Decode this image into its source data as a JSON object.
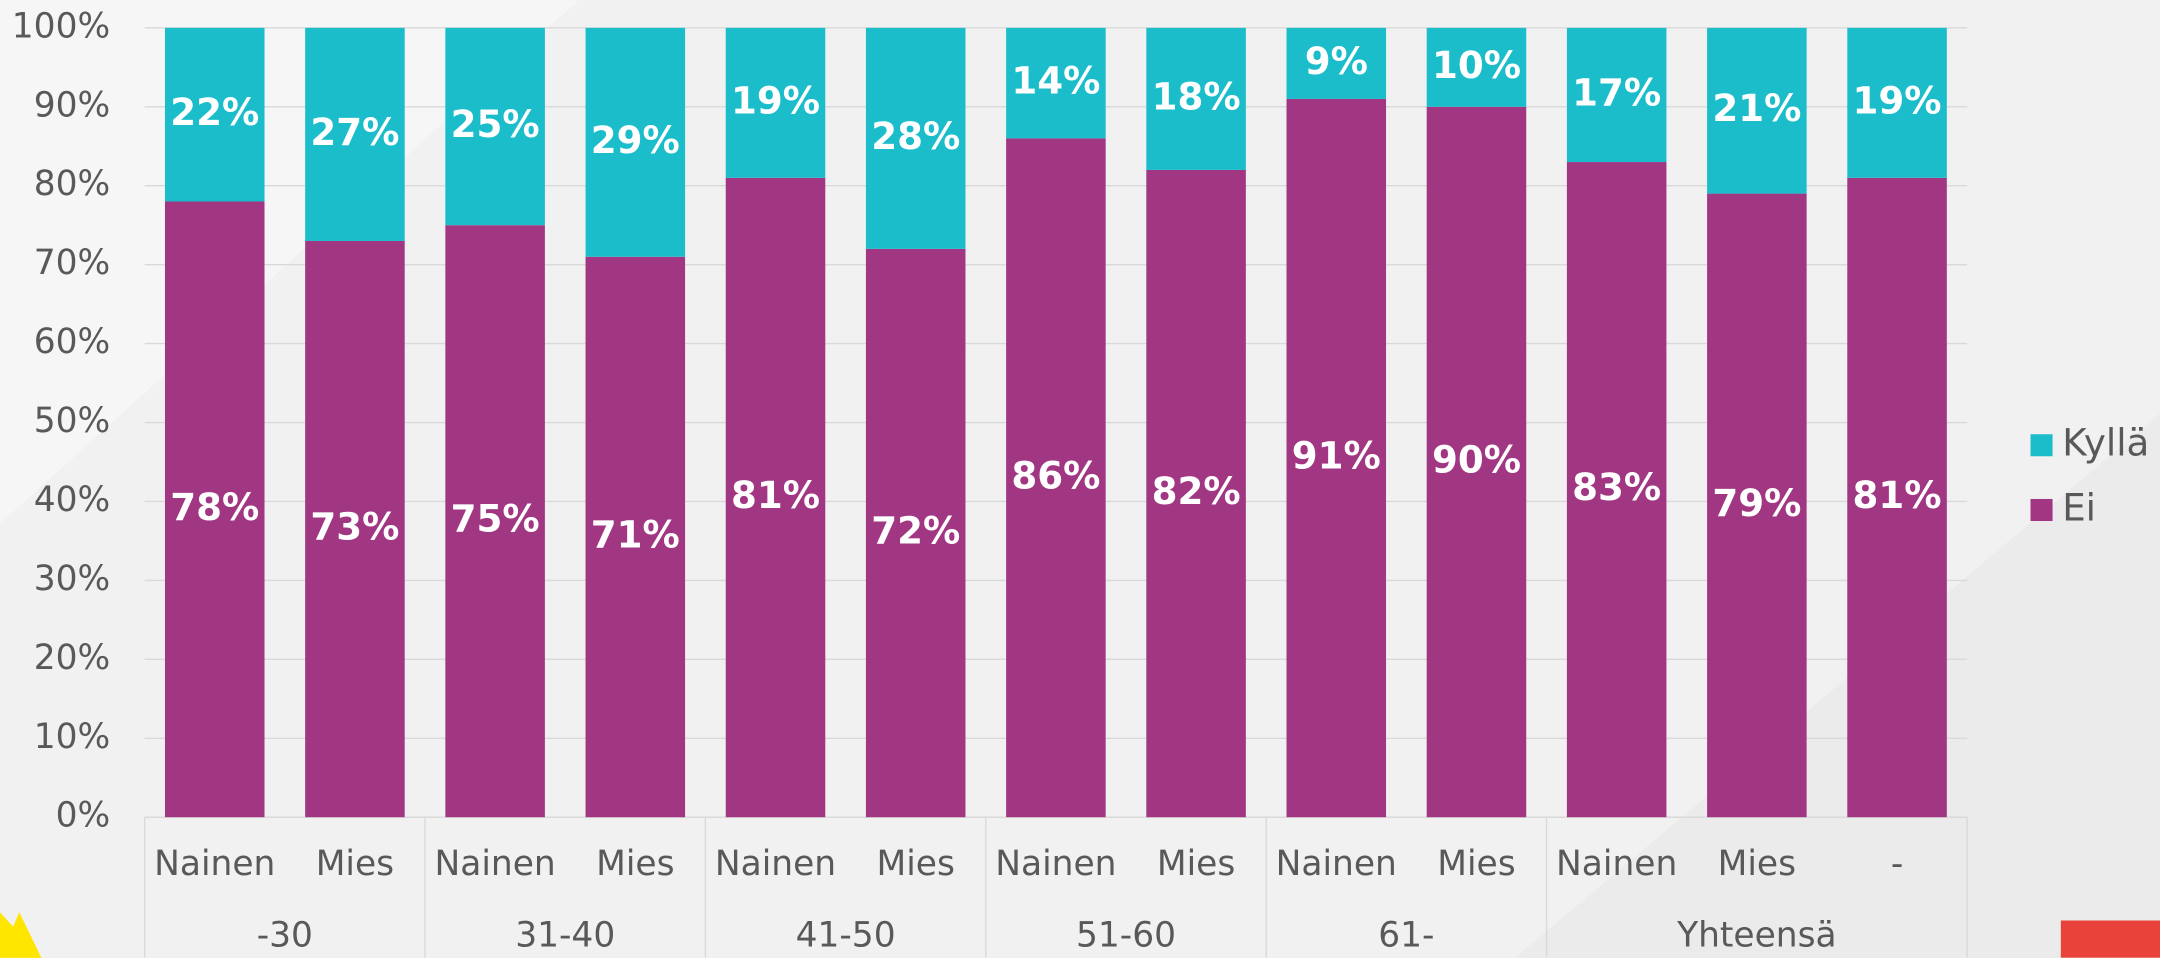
{
  "chart_data": {
    "type": "stacked_bar",
    "groups": [
      {
        "name": "-30",
        "categories": [
          "Nainen",
          "Mies"
        ]
      },
      {
        "name": "31-40",
        "categories": [
          "Nainen",
          "Mies"
        ]
      },
      {
        "name": "41-50",
        "categories": [
          "Nainen",
          "Mies"
        ]
      },
      {
        "name": "51-60",
        "categories": [
          "Nainen",
          "Mies"
        ]
      },
      {
        "name": "61-",
        "categories": [
          "Nainen",
          "Mies"
        ]
      },
      {
        "name": "Yhteensä",
        "categories": [
          "Nainen",
          "Mies",
          "-"
        ]
      }
    ],
    "series": [
      {
        "name": "Ei",
        "color": "#a13682",
        "values": [
          78,
          73,
          75,
          71,
          81,
          72,
          86,
          82,
          91,
          90,
          83,
          79,
          81
        ],
        "value_labels": [
          "78%",
          "73%",
          "75%",
          "71%",
          "81%",
          "72%",
          "86%",
          "82%",
          "91%",
          "90%",
          "83%",
          "79%",
          "81%"
        ]
      },
      {
        "name": "Kyllä",
        "color": "#1bbdcb",
        "values": [
          22,
          27,
          25,
          29,
          19,
          28,
          14,
          18,
          9,
          10,
          17,
          21,
          19
        ],
        "value_labels": [
          "22%",
          "27%",
          "25%",
          "29%",
          "19%",
          "28%",
          "14%",
          "18%",
          "9%",
          "10%",
          "17%",
          "21%",
          "19%"
        ]
      }
    ],
    "ylim": [
      0,
      100
    ],
    "yticks": [
      {
        "value": 0,
        "label": "0%"
      },
      {
        "value": 10,
        "label": "10%"
      },
      {
        "value": 20,
        "label": "20%"
      },
      {
        "value": 30,
        "label": "30%"
      },
      {
        "value": 40,
        "label": "40%"
      },
      {
        "value": 50,
        "label": "50%"
      },
      {
        "value": 60,
        "label": "60%"
      },
      {
        "value": 70,
        "label": "70%"
      },
      {
        "value": 80,
        "label": "80%"
      },
      {
        "value": 90,
        "label": "90%"
      },
      {
        "value": 100,
        "label": "100%"
      }
    ],
    "grid": true,
    "legend": "right"
  }
}
